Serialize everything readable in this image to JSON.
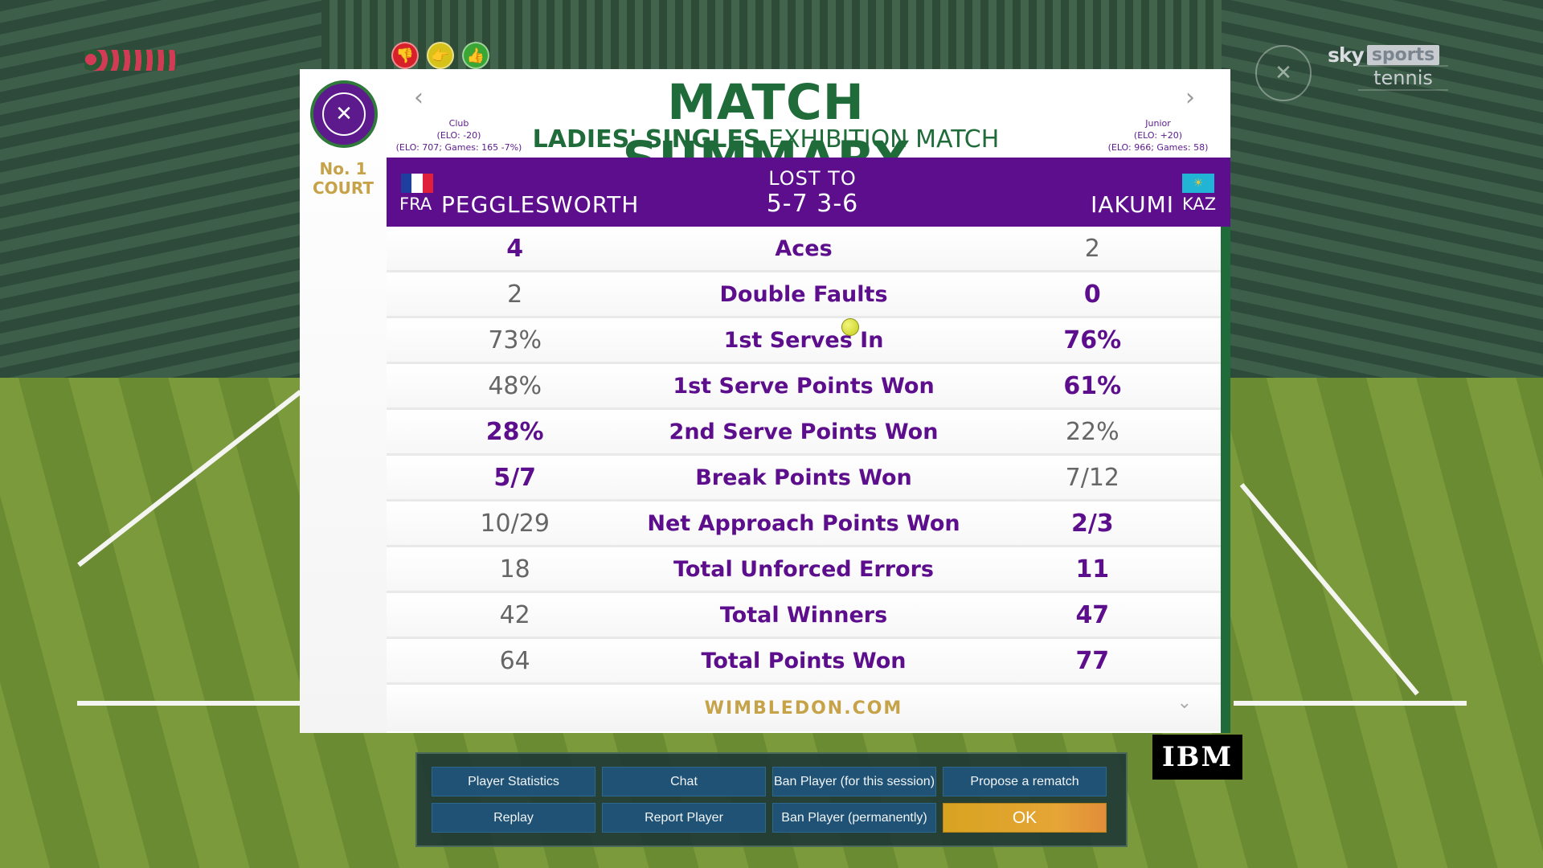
{
  "broadcast": {
    "sky_word": "sky",
    "sports_word": "sports",
    "channel_word": "tennis"
  },
  "reactions": [
    {
      "name": "thumbs-down-icon",
      "glyph": "👎"
    },
    {
      "name": "thumbs-sideways-icon",
      "glyph": "👉"
    },
    {
      "name": "thumbs-up-icon",
      "glyph": "👍"
    }
  ],
  "venue": {
    "court": "No. 1\nCOURT"
  },
  "summary": {
    "title": "MATCH SUMMARY",
    "subtitle_bold": "LADIES' SINGLES",
    "subtitle_rest": " EXHIBITION MATCH",
    "footer_link": "WIMBLEDON.COM"
  },
  "player1": {
    "tier": "Club",
    "elo_change": "(ELO: -20)",
    "elo_detail": "(ELO: 707; Games: 165 -7%)",
    "country": "FRA",
    "name": "PEGGLESWORTH",
    "flag_colors": [
      "#1f3f9e",
      "#ffffff",
      "#e0203a"
    ]
  },
  "player2": {
    "tier": "Junior",
    "elo_change": "(ELO: +20)",
    "elo_detail": "(ELO: 966; Games: 58)",
    "country": "KAZ",
    "name": "IAKUMI",
    "flag_color": "#21b4d4"
  },
  "result": {
    "label": "LOST TO",
    "score": "5-7 3-6"
  },
  "stats": [
    {
      "label": "Aces",
      "left": "4",
      "right": "2",
      "winner": "left"
    },
    {
      "label": "Double Faults",
      "left": "2",
      "right": "0",
      "winner": "right"
    },
    {
      "label": "1st Serves In",
      "left": "73%",
      "right": "76%",
      "winner": "right"
    },
    {
      "label": "1st Serve Points Won",
      "left": "48%",
      "right": "61%",
      "winner": "right"
    },
    {
      "label": "2nd Serve Points Won",
      "left": "28%",
      "right": "22%",
      "winner": "left"
    },
    {
      "label": "Break Points Won",
      "left": "5/7",
      "right": "7/12",
      "winner": "left"
    },
    {
      "label": "Net Approach Points Won",
      "left": "10/29",
      "right": "2/3",
      "winner": "right"
    },
    {
      "label": "Total Unforced Errors",
      "left": "18",
      "right": "11",
      "winner": "right"
    },
    {
      "label": "Total Winners",
      "left": "42",
      "right": "47",
      "winner": "right"
    },
    {
      "label": "Total Points Won",
      "left": "64",
      "right": "77",
      "winner": "right"
    }
  ],
  "sponsor": "IBM",
  "actions": {
    "player_statistics": "Player Statistics",
    "chat": "Chat",
    "ban_session": "Ban Player (for this session)",
    "propose_rematch": "Propose a rematch",
    "replay": "Replay",
    "report_player": "Report Player",
    "ban_permanent": "Ban Player (permanently)",
    "ok": "OK"
  },
  "colors": {
    "wimbledon_purple": "#5c0e8c",
    "wimbledon_green": "#1f6b3a",
    "gold": "#c6a248",
    "ok_orange": "#e6a536"
  }
}
